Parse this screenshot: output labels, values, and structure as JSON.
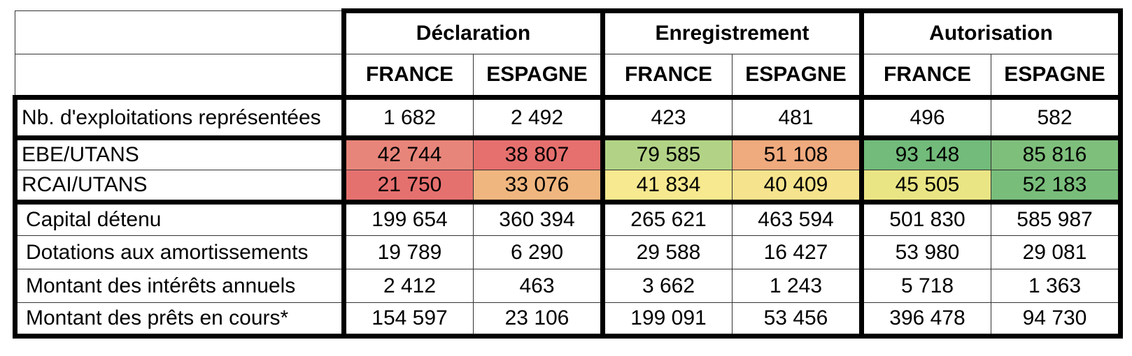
{
  "table": {
    "groups": [
      "Déclaration",
      "Enregistrement",
      "Autorisation"
    ],
    "countries": [
      "FRANCE",
      "ESPAGNE",
      "FRANCE",
      "ESPAGNE",
      "FRANCE",
      "ESPAGNE"
    ],
    "rows": [
      {
        "label": "Nb. d'exploitations représentées",
        "values": [
          "1 682",
          "2 492",
          "423",
          "481",
          "496",
          "582"
        ]
      },
      {
        "label": "EBE/UTANS",
        "values": [
          "42 744",
          "38 807",
          "79 585",
          "51 108",
          "93 148",
          "85 816"
        ]
      },
      {
        "label": "RCAI/UTANS",
        "values": [
          "21 750",
          "33 076",
          "41 834",
          "40 409",
          "45 505",
          "52 183"
        ]
      },
      {
        "label": "Capital détenu",
        "values": [
          "199 654",
          "360 394",
          "265 621",
          "463 594",
          "501 830",
          "585 987"
        ]
      },
      {
        "label": "Dotations aux amortissements",
        "values": [
          "19 789",
          "6 290",
          "29 588",
          "16 427",
          "53 980",
          "29 081"
        ]
      },
      {
        "label": "Montant des intérêts annuels",
        "values": [
          "2 412",
          "463",
          "3 662",
          "1 243",
          "5 718",
          "1 363"
        ]
      },
      {
        "label": "Montant des prêts en cours*",
        "values": [
          "154 597",
          "23 106",
          "199 091",
          "53 456",
          "396 478",
          "94 730"
        ]
      }
    ]
  }
}
